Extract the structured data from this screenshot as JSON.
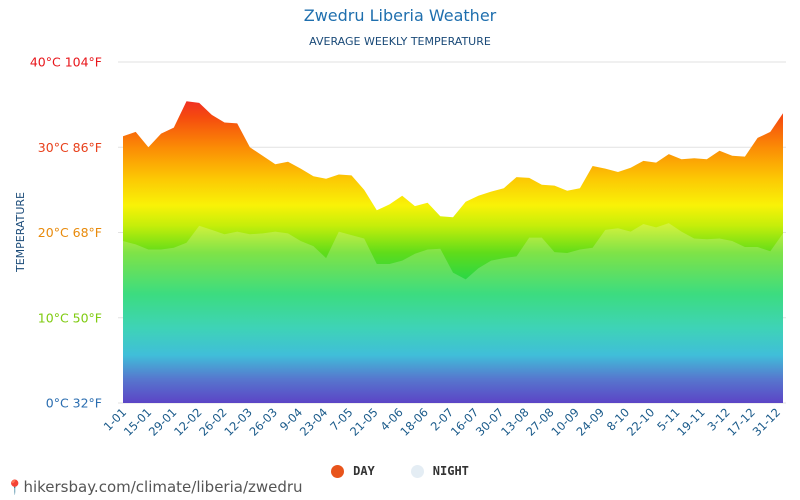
{
  "chart_data": {
    "type": "area",
    "title": "Zwedru Liberia Weather",
    "subtitle": "AVERAGE WEEKLY TEMPERATURE",
    "ylabel": "TEMPERATURE",
    "ylim": [
      0,
      40
    ],
    "y_ticks": [
      {
        "value": 40,
        "label": "40°C 104°F",
        "color": "#e8161b"
      },
      {
        "value": 30,
        "label": "30°C 86°F",
        "color": "#e8401b"
      },
      {
        "value": 20,
        "label": "20°C 68°F",
        "color": "#e88a0b"
      },
      {
        "value": 10,
        "label": "10°C 50°F",
        "color": "#7fcb10"
      },
      {
        "value": 0,
        "label": "0°C 32°F",
        "color": "#2a6db0"
      }
    ],
    "x_ticks": [
      "1-01",
      "15-01",
      "29-01",
      "12-02",
      "26-02",
      "12-03",
      "26-03",
      "9-04",
      "23-04",
      "7-05",
      "21-05",
      "4-06",
      "18-06",
      "2-07",
      "16-07",
      "30-07",
      "13-08",
      "27-08",
      "10-09",
      "24-09",
      "8-10",
      "22-10",
      "5-11",
      "19-11",
      "3-12",
      "17-12",
      "31-12"
    ],
    "grid": true,
    "legend_position": "bottom",
    "series": [
      {
        "name": "DAY",
        "color": "#e8541b",
        "values": [
          31.3,
          31.8,
          30.0,
          31.6,
          32.3,
          35.4,
          35.2,
          33.8,
          32.9,
          32.8,
          30.0,
          29.0,
          28.0,
          28.3,
          27.5,
          26.6,
          26.3,
          26.8,
          26.7,
          25.0,
          22.6,
          23.3,
          24.3,
          23.1,
          23.5,
          21.9,
          21.8,
          23.6,
          24.3,
          24.8,
          25.2,
          26.5,
          26.4,
          25.6,
          25.5,
          24.9,
          25.2,
          27.8,
          27.5,
          27.1,
          27.6,
          28.4,
          28.2,
          29.2,
          28.6,
          28.7,
          28.6,
          29.6,
          29.0,
          28.9,
          31.1,
          31.8,
          34.0
        ]
      },
      {
        "name": "NIGHT",
        "color": "#e4edf4",
        "values": [
          19.0,
          18.6,
          18.0,
          18.0,
          18.2,
          18.8,
          20.8,
          20.3,
          19.8,
          20.1,
          19.8,
          19.9,
          20.1,
          19.9,
          19.0,
          18.4,
          17.0,
          20.1,
          19.7,
          19.3,
          16.3,
          16.3,
          16.7,
          17.5,
          18.0,
          18.1,
          15.3,
          14.5,
          15.8,
          16.7,
          17.0,
          17.2,
          19.4,
          19.4,
          17.7,
          17.6,
          18.0,
          18.2,
          20.3,
          20.5,
          20.1,
          21.0,
          20.6,
          21.1,
          20.1,
          19.3,
          19.2,
          19.3,
          19.0,
          18.3,
          18.3,
          17.8,
          19.9
        ]
      }
    ]
  },
  "legend": {
    "day_label": "DAY",
    "night_label": "NIGHT"
  },
  "source": {
    "text": "hikersbay.com/climate/liberia/zwedru",
    "icon": "location-pin-icon"
  }
}
